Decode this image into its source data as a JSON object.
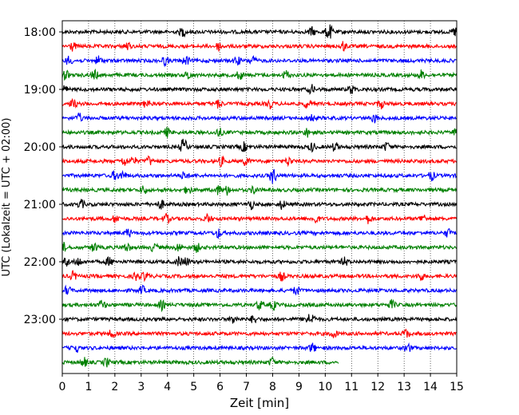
{
  "chart_data": {
    "type": "line",
    "title": "",
    "xlabel": "Zeit  [min]",
    "ylabel": "UTC (Lokalzeit = UTC + 02:00)",
    "xlim": [
      0,
      15
    ],
    "x_ticks": [
      0,
      1,
      2,
      3,
      4,
      5,
      6,
      7,
      8,
      9,
      10,
      11,
      12,
      13,
      14,
      15
    ],
    "x_tick_labels": [
      "0",
      "1",
      "2",
      "3",
      "4",
      "5",
      "6",
      "7",
      "8",
      "9",
      "10",
      "11",
      "12",
      "13",
      "14",
      "15"
    ],
    "y_tick_labels": [
      "18:00",
      "19:00",
      "20:00",
      "21:00",
      "22:00",
      "23:00"
    ],
    "grid": "vertical dotted",
    "trace_colors": [
      "#000000",
      "#ff0000",
      "#0000ff",
      "#008000"
    ],
    "series": [
      {
        "start": "18:00",
        "values": [
          0,
          15
        ]
      },
      {
        "start": "18:15",
        "values": [
          0,
          15
        ]
      },
      {
        "start": "18:30",
        "values": [
          0,
          15
        ]
      },
      {
        "start": "18:45",
        "values": [
          0,
          15
        ]
      },
      {
        "start": "19:00",
        "values": [
          0,
          15
        ]
      },
      {
        "start": "19:15",
        "values": [
          0,
          15
        ]
      },
      {
        "start": "19:30",
        "values": [
          0,
          15
        ]
      },
      {
        "start": "19:45",
        "values": [
          0,
          15
        ]
      },
      {
        "start": "20:00",
        "values": [
          0,
          15
        ]
      },
      {
        "start": "20:15",
        "values": [
          0,
          15
        ]
      },
      {
        "start": "20:30",
        "values": [
          0,
          15
        ]
      },
      {
        "start": "20:45",
        "values": [
          0,
          15
        ]
      },
      {
        "start": "21:00",
        "values": [
          0,
          15
        ]
      },
      {
        "start": "21:15",
        "values": [
          0,
          15
        ]
      },
      {
        "start": "21:30",
        "values": [
          0,
          15
        ]
      },
      {
        "start": "21:45",
        "values": [
          0,
          15
        ]
      },
      {
        "start": "22:00",
        "values": [
          0,
          15
        ]
      },
      {
        "start": "22:15",
        "values": [
          0,
          15
        ]
      },
      {
        "start": "22:30",
        "values": [
          0,
          15
        ]
      },
      {
        "start": "22:45",
        "values": [
          0,
          15
        ]
      },
      {
        "start": "23:00",
        "values": [
          0,
          15
        ]
      },
      {
        "start": "23:15",
        "values": [
          0,
          15
        ]
      },
      {
        "start": "23:30",
        "values": [
          0,
          15
        ]
      },
      {
        "start": "23:45",
        "values": [
          0,
          10.5
        ]
      }
    ]
  }
}
